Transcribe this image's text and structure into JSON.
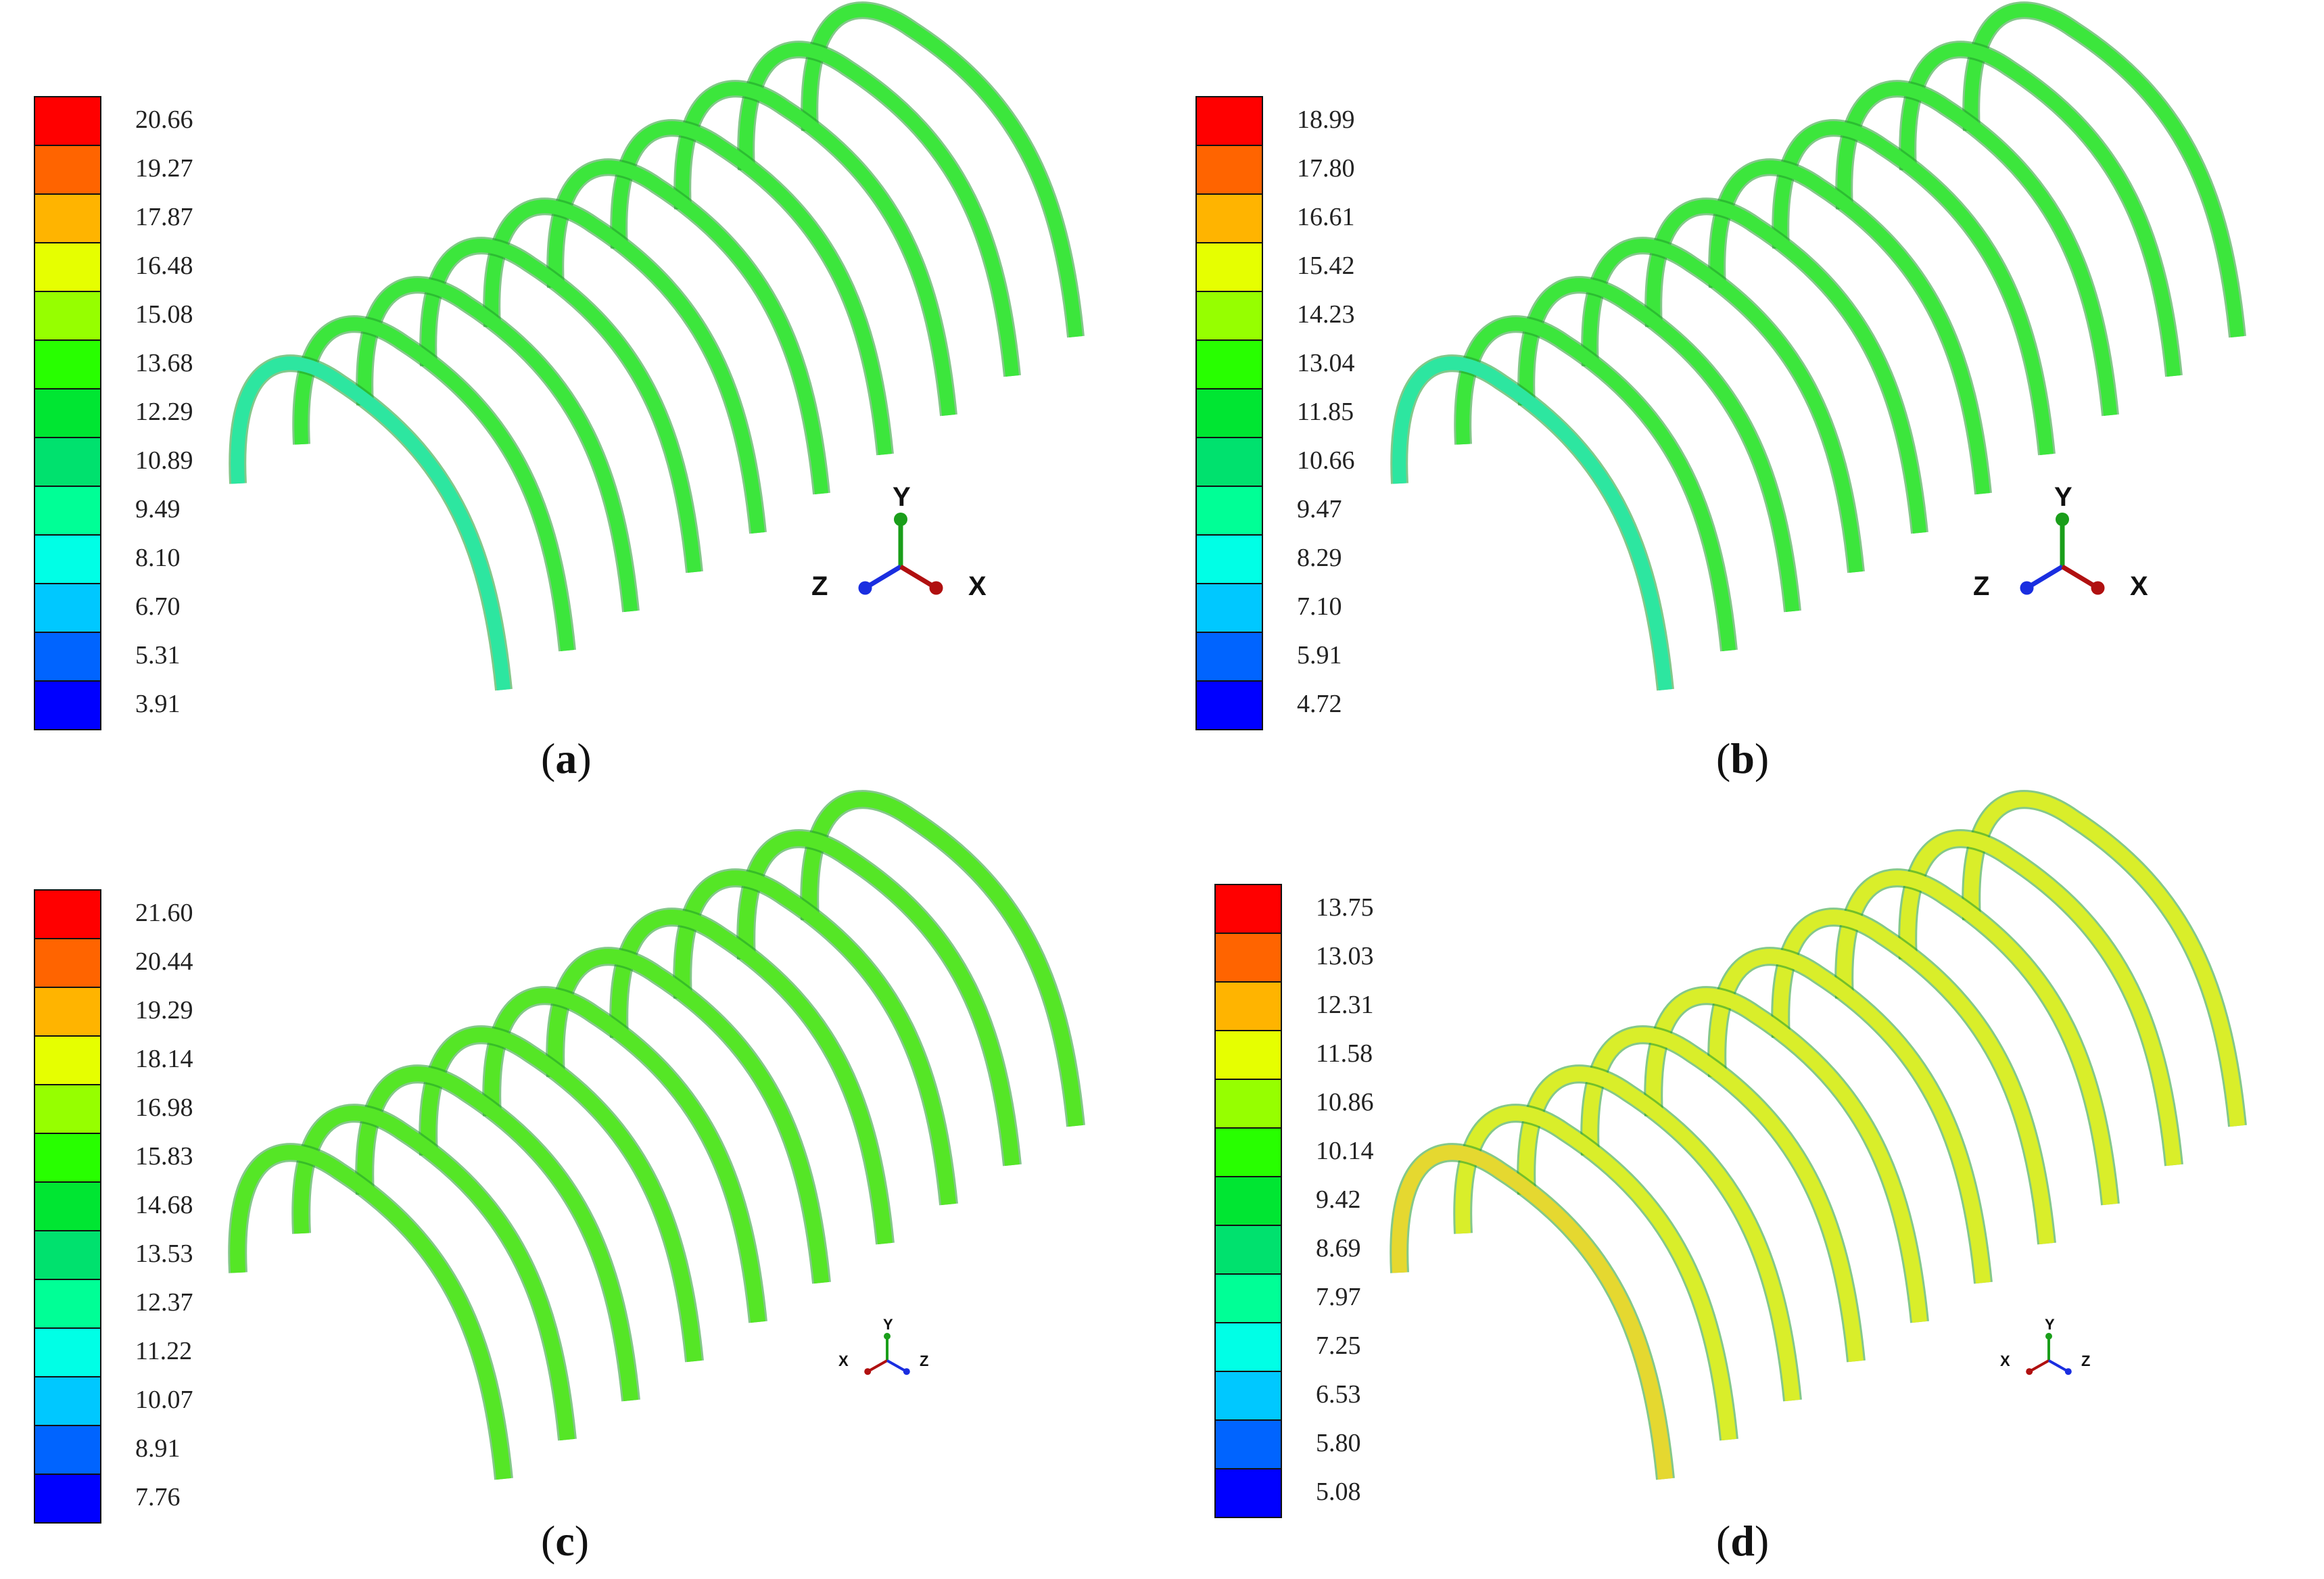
{
  "figure": {
    "panels": [
      {
        "id": "a",
        "caption_open": "(",
        "caption_letter": "a",
        "caption_close": ")",
        "legend": [
          "20.66",
          "19.27",
          "17.87",
          "16.48",
          "15.08",
          "13.68",
          "12.29",
          "10.89",
          "9.49",
          "8.10",
          "6.70",
          "5.31",
          "3.91"
        ],
        "axes": {
          "labels": [
            "Y",
            "Z",
            "X"
          ],
          "style": "large"
        },
        "arch_color": "#3CE63C",
        "arch_front_color": "#2DE6A0"
      },
      {
        "id": "b",
        "caption_open": "(",
        "caption_letter": "b",
        "caption_close": ")",
        "legend": [
          "18.99",
          "17.80",
          "16.61",
          "15.42",
          "14.23",
          "13.04",
          "11.85",
          "10.66",
          "9.47",
          "8.29",
          "7.10",
          "5.91",
          "4.72"
        ],
        "axes": {
          "labels": [
            "Y",
            "Z",
            "X"
          ],
          "style": "large"
        },
        "arch_color": "#3CE63C",
        "arch_front_color": "#2DE6A0"
      },
      {
        "id": "c",
        "caption_open": "(",
        "caption_letter": "c",
        "caption_close": ")",
        "legend": [
          "21.60",
          "20.44",
          "19.29",
          "18.14",
          "16.98",
          "15.83",
          "14.68",
          "13.53",
          "12.37",
          "11.22",
          "10.07",
          "8.91",
          "7.76"
        ],
        "axes": {
          "labels": [
            "Y",
            "X",
            "Z"
          ],
          "style": "small"
        },
        "arch_color": "#55E626",
        "arch_front_color": "#55E626"
      },
      {
        "id": "d",
        "caption_open": "(",
        "caption_letter": "d",
        "caption_close": ")",
        "legend": [
          "13.75",
          "13.03",
          "12.31",
          "11.58",
          "10.86",
          "10.14",
          "9.42",
          "8.69",
          "7.97",
          "7.25",
          "6.53",
          "5.80",
          "5.08"
        ],
        "axes": {
          "labels": [
            "Y",
            "X",
            "Z"
          ],
          "style": "small"
        },
        "arch_color": "#D9EE2A",
        "arch_front_color": "#E5D830"
      }
    ],
    "legend_colors": [
      "#FF0000",
      "#FF6400",
      "#FFB400",
      "#E6FF00",
      "#96FF00",
      "#28FF00",
      "#00E632",
      "#00E16E",
      "#00FF96",
      "#00FFE6",
      "#00C8FF",
      "#0064FF",
      "#0000FF"
    ]
  }
}
